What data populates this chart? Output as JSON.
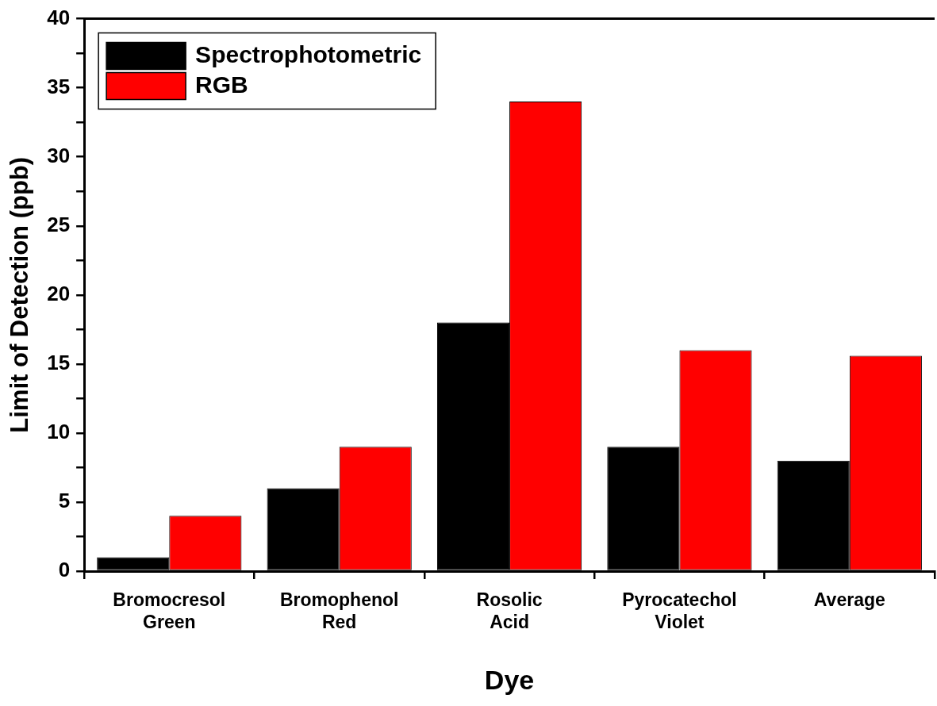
{
  "chart_data": {
    "type": "bar",
    "xlabel": "Dye",
    "ylabel": "Limit of Detection (ppb)",
    "categories": [
      "Bromocresol Green",
      "Bromophenol Red",
      "Rosolic Acid",
      "Pyrocatechol Violet",
      "Average"
    ],
    "series": [
      {
        "name": "Spectrophotometric",
        "color": "#000000",
        "values": [
          1,
          6,
          18,
          9,
          8
        ]
      },
      {
        "name": "RGB",
        "color": "#ff0000",
        "values": [
          4,
          9,
          34,
          16,
          15.6
        ]
      }
    ],
    "ylim": [
      0,
      40
    ],
    "yticks": [
      0,
      {
        "value": 2.5,
        "label": null
      },
      5,
      {
        "value": 7.5,
        "label": null
      },
      10,
      {
        "value": 12.5,
        "label": null
      },
      15,
      {
        "value": 17.5,
        "label": null
      },
      20,
      {
        "value": 22.5,
        "label": null
      },
      25,
      {
        "value": 27.5,
        "label": null
      },
      30,
      {
        "value": 32.5,
        "label": null
      },
      35,
      {
        "value": 37.5,
        "label": null
      },
      40
    ],
    "grid": false,
    "legend": "top left"
  }
}
